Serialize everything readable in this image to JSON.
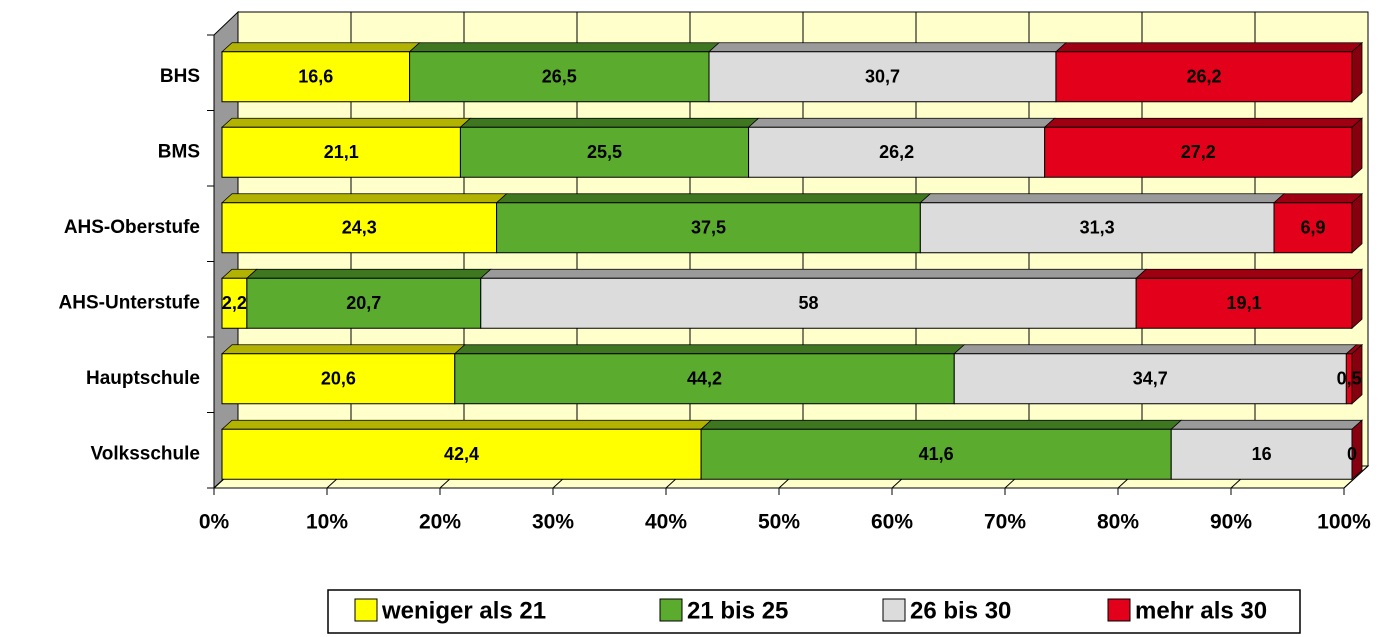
{
  "chart_data": {
    "type": "stacked_bar_horizontal_100",
    "categories": [
      "BHS",
      "BMS",
      "AHS-Oberstufe",
      "AHS-Unterstufe",
      "Hauptschule",
      "Volksschule"
    ],
    "series": [
      {
        "name": "weniger als 21",
        "color": "#ffff00",
        "values": [
          16.6,
          21.1,
          24.3,
          2.2,
          20.6,
          42.4
        ],
        "value_labels": [
          "16,6",
          "21,1",
          "24,3",
          "2,2",
          "20,6",
          "42,4"
        ]
      },
      {
        "name": "21 bis 25",
        "color": "#5aab2e",
        "values": [
          26.5,
          25.5,
          37.5,
          20.7,
          44.2,
          41.6
        ],
        "value_labels": [
          "26,5",
          "25,5",
          "37,5",
          "20,7",
          "44,2",
          "41,6"
        ]
      },
      {
        "name": "26 bis 30",
        "color": "#dcdcdc",
        "values": [
          30.7,
          26.2,
          31.3,
          58,
          34.7,
          16
        ],
        "value_labels": [
          "30,7",
          "26,2",
          "31,3",
          "58",
          "34,7",
          "16"
        ]
      },
      {
        "name": "mehr als 30",
        "color": "#e2001a",
        "values": [
          26.2,
          27.2,
          6.9,
          19.1,
          0.5,
          0
        ],
        "value_labels": [
          "26,2",
          "27,2",
          "6,9",
          "19,1",
          "0,5",
          "0"
        ]
      }
    ],
    "xlim": [
      0,
      100
    ],
    "xticks": [
      {
        "value": 0,
        "label": "0%"
      },
      {
        "value": 10,
        "label": "10%"
      },
      {
        "value": 20,
        "label": "20%"
      },
      {
        "value": 30,
        "label": "30%"
      },
      {
        "value": 40,
        "label": "40%"
      },
      {
        "value": 50,
        "label": "50%"
      },
      {
        "value": 60,
        "label": "60%"
      },
      {
        "value": 70,
        "label": "70%"
      },
      {
        "value": 80,
        "label": "80%"
      },
      {
        "value": 90,
        "label": "90%"
      },
      {
        "value": 100,
        "label": "100%"
      }
    ],
    "grid": true,
    "legend": "bottom"
  }
}
